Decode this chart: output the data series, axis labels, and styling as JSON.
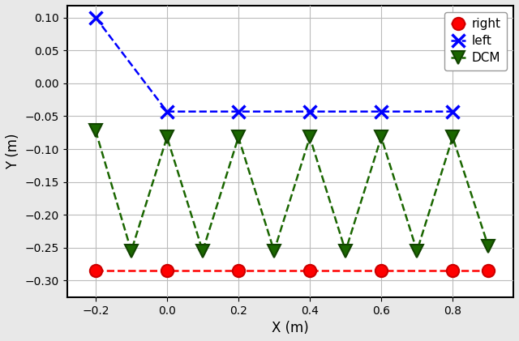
{
  "right_x": [
    -0.2,
    0.0,
    0.2,
    0.4,
    0.6,
    0.8,
    0.9
  ],
  "right_y": [
    -0.285,
    -0.285,
    -0.285,
    -0.285,
    -0.285,
    -0.285,
    -0.285
  ],
  "left_x": [
    -0.2,
    0.0,
    0.2,
    0.4,
    0.6,
    0.8
  ],
  "left_y": [
    0.1,
    -0.043,
    -0.043,
    -0.043,
    -0.043,
    -0.043
  ],
  "dcm_x": [
    -0.2,
    -0.1,
    0.0,
    0.1,
    0.2,
    0.3,
    0.4,
    0.5,
    0.6,
    0.7,
    0.8,
    0.9
  ],
  "dcm_y": [
    -0.072,
    -0.255,
    -0.082,
    -0.255,
    -0.082,
    -0.255,
    -0.082,
    -0.255,
    -0.082,
    -0.255,
    -0.082,
    -0.248
  ],
  "right_color": "#ff0000",
  "left_color": "#0000ff",
  "dcm_color": "#1a6600",
  "xlabel": "X (m)",
  "ylabel": "Y (m)",
  "xlim": [
    -0.28,
    0.97
  ],
  "ylim": [
    -0.325,
    0.118
  ],
  "xticks": [
    -0.2,
    0.0,
    0.2,
    0.4,
    0.6,
    0.8
  ],
  "yticks": [
    -0.3,
    -0.25,
    -0.2,
    -0.15,
    -0.1,
    -0.05,
    0.0,
    0.05,
    0.1
  ],
  "legend_labels": [
    "right",
    "left",
    "DCM"
  ],
  "grid_color": "#bbbbbb",
  "bg_color": "#ffffff",
  "fig_bg": "#e8e8e8"
}
